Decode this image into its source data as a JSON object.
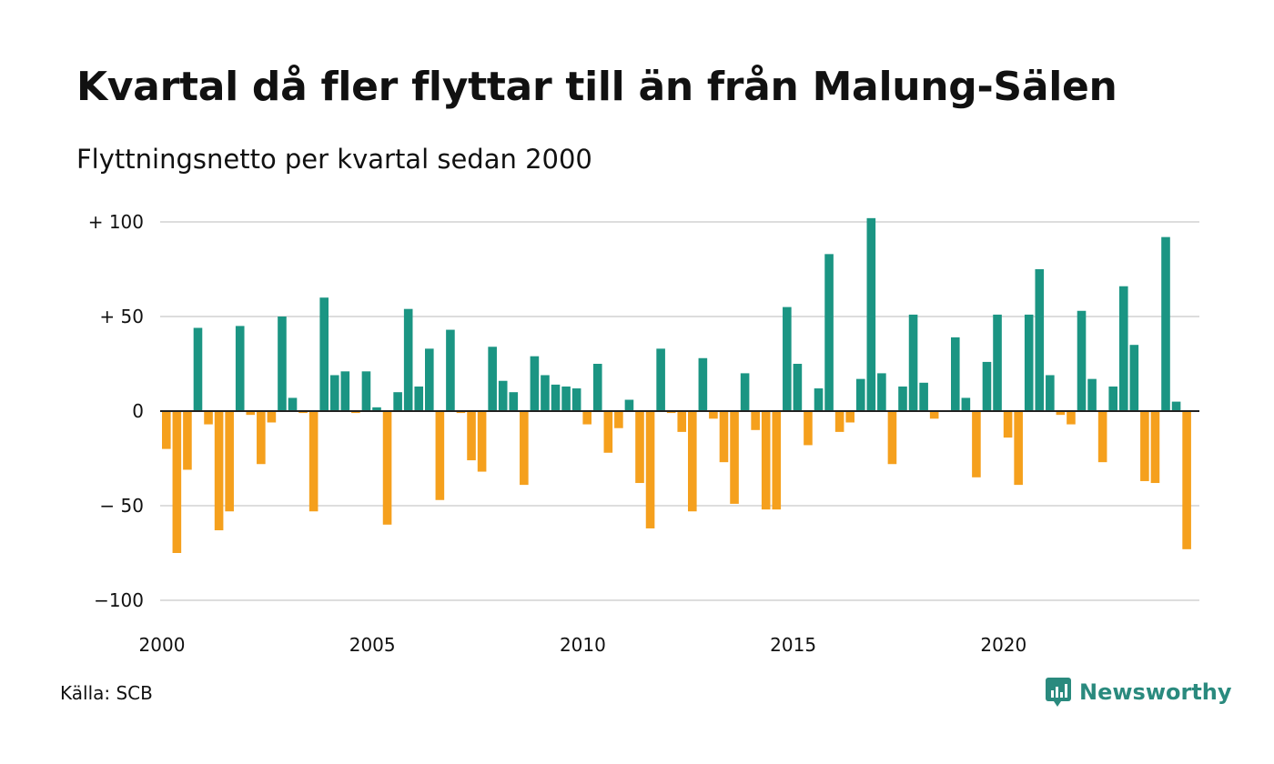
{
  "header": {
    "title": "Kvartal då fler flyttar till än från Malung-Sälen",
    "subtitle": "Flyttningsnetto per kvartal sedan 2000"
  },
  "footer": {
    "source": "Källa: SCB",
    "brand": "Newsworthy"
  },
  "colors": {
    "positive": "#1b9583",
    "negative": "#f5a01d",
    "grid": "#dddddd",
    "brand": "#2a8a7e"
  },
  "chart_data": {
    "type": "bar",
    "start_year": 2000,
    "quarters_per_year": 4,
    "x_tick_labels": [
      "2000",
      "2005",
      "2010",
      "2015",
      "2020"
    ],
    "y_ticks": [
      {
        "value": 100,
        "label": "+ 100"
      },
      {
        "value": 50,
        "label": "+  50"
      },
      {
        "value": 0,
        "label": "0"
      },
      {
        "value": -50,
        "label": "− 50"
      },
      {
        "value": -100,
        "label": "−100"
      }
    ],
    "ylim": [
      -100,
      100
    ],
    "grid": true,
    "values": [
      -20,
      -75,
      -31,
      44,
      -7,
      -63,
      -53,
      45,
      -2,
      -28,
      -6,
      50,
      7,
      -1,
      -53,
      60,
      19,
      21,
      -1,
      21,
      2,
      -60,
      10,
      54,
      13,
      33,
      -47,
      43,
      -1,
      -26,
      -32,
      34,
      16,
      10,
      -39,
      29,
      19,
      14,
      13,
      12,
      -7,
      25,
      -22,
      -9,
      6,
      -38,
      -62,
      33,
      -1,
      -11,
      -53,
      28,
      -4,
      -27,
      -49,
      20,
      -10,
      -52,
      -52,
      55,
      25,
      -18,
      12,
      83,
      -11,
      -6,
      17,
      102,
      20,
      -28,
      13,
      51,
      15,
      -4,
      0,
      39,
      7,
      -35,
      26,
      51,
      -14,
      -39,
      51,
      75,
      19,
      -2,
      -7,
      53,
      17,
      -27,
      13,
      66,
      35,
      -37,
      -38,
      92,
      5,
      -73
    ]
  }
}
